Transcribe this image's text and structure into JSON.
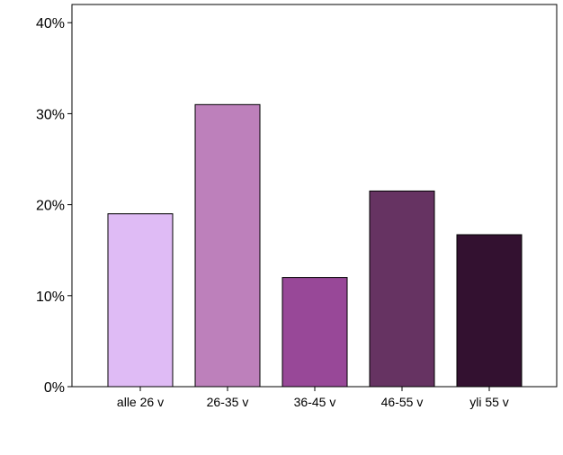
{
  "chart_data": {
    "type": "bar",
    "categories": [
      "alle 26 v",
      "26-35 v",
      "36-45 v",
      "46-55 v",
      "yli 55 v"
    ],
    "values": [
      19.0,
      31.0,
      12.0,
      21.5,
      16.7
    ],
    "colors": [
      "#dfbbf5",
      "#bd80bb",
      "#984898",
      "#663362",
      "#331130"
    ],
    "ylim": [
      0,
      42
    ],
    "yticks": [
      0,
      10,
      20,
      30,
      40
    ],
    "ytick_labels": [
      "0%",
      "10%",
      "20%",
      "30%",
      "40%"
    ],
    "title": "",
    "xlabel": "",
    "ylabel": "",
    "grid": false
  }
}
